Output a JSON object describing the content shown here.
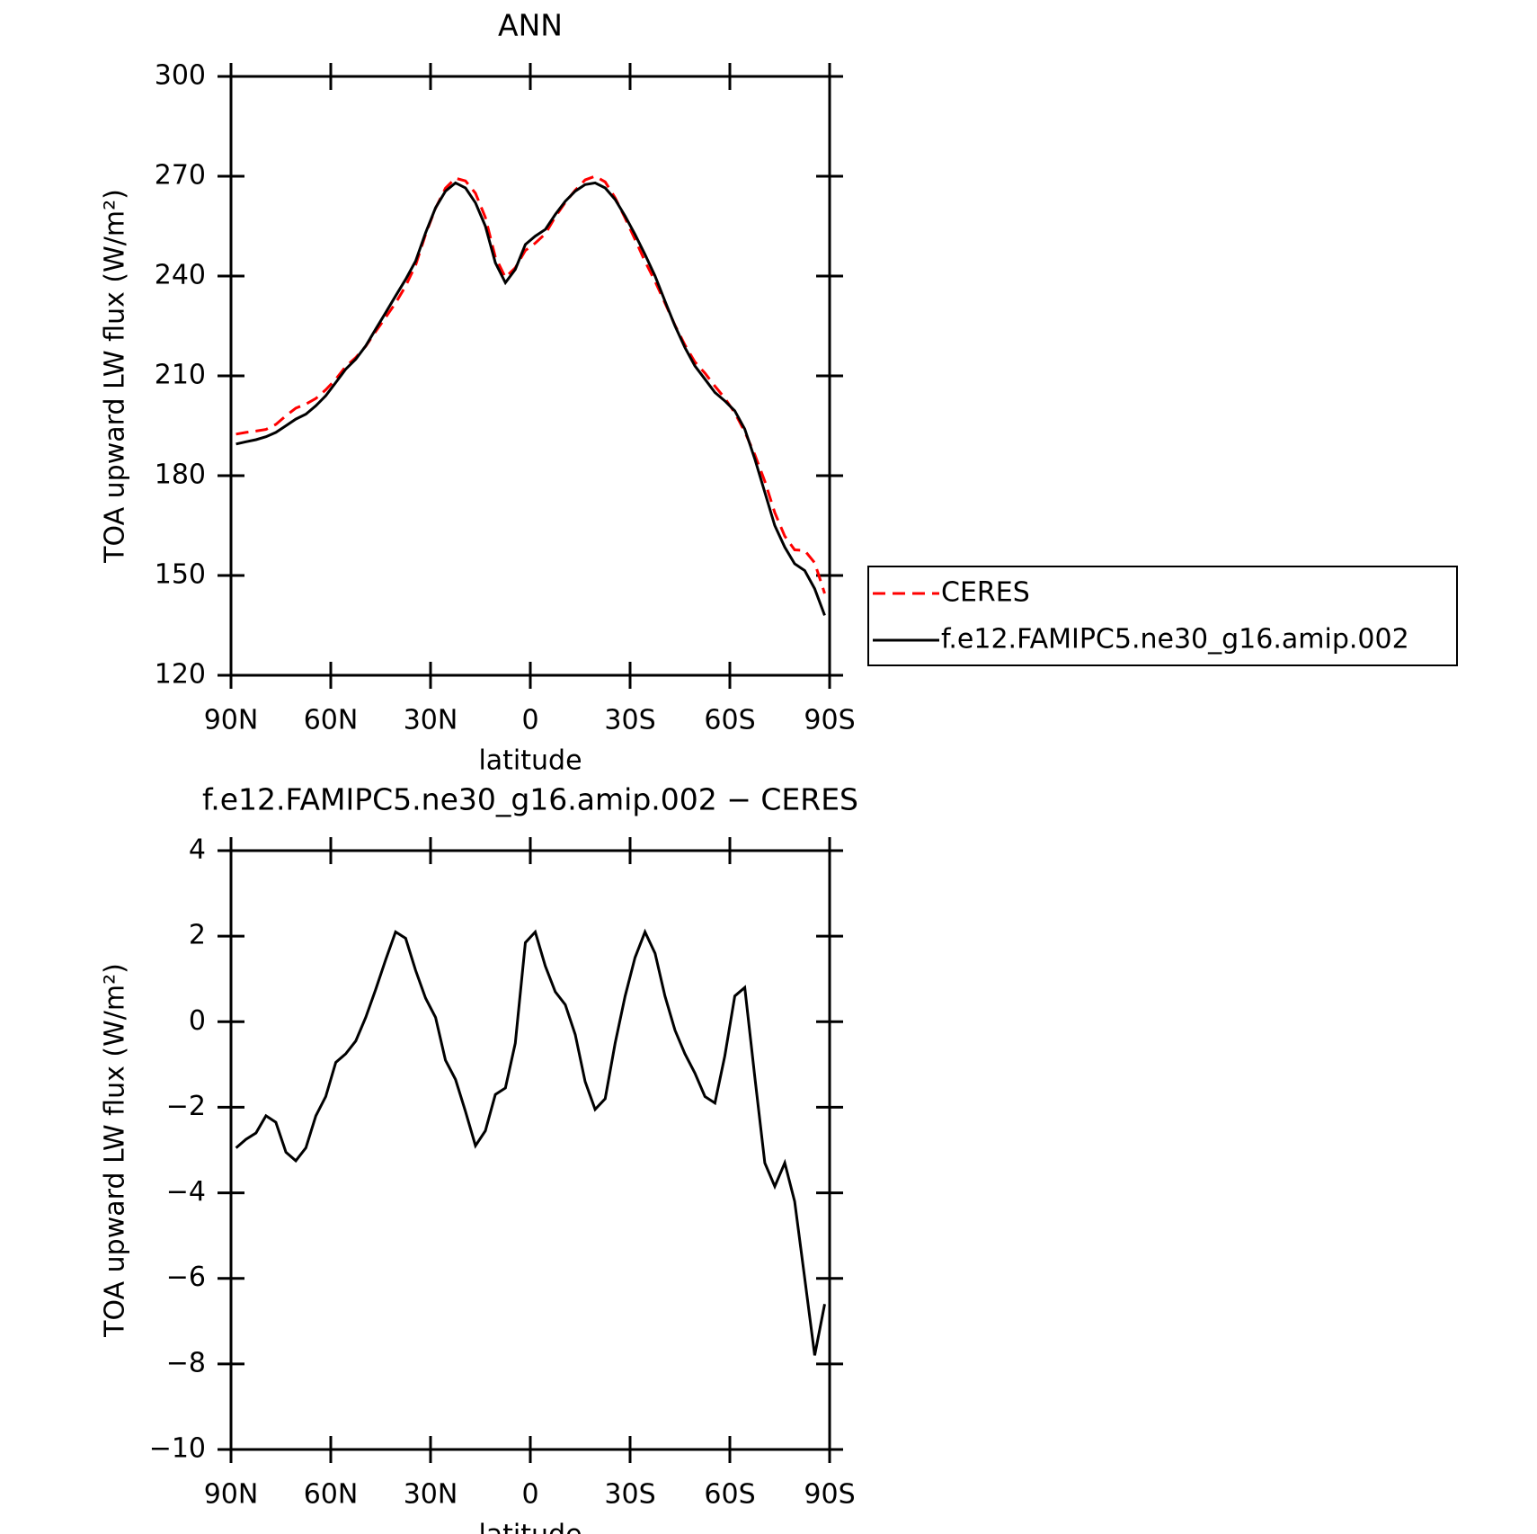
{
  "chart_data": [
    {
      "type": "line",
      "title": "ANN",
      "xlabel": "latitude",
      "ylabel": "TOA upward LW flux (W/m²)",
      "x": [
        88.5,
        85.5,
        82.5,
        79.5,
        76.5,
        73.5,
        70.5,
        67.5,
        64.5,
        61.5,
        58.5,
        55.5,
        52.5,
        49.5,
        46.5,
        43.5,
        40.5,
        37.5,
        34.5,
        31.5,
        28.5,
        25.5,
        22.5,
        19.5,
        16.5,
        13.5,
        10.5,
        7.5,
        4.5,
        1.5,
        -1.5,
        -4.5,
        -7.5,
        -10.5,
        -13.5,
        -16.5,
        -19.5,
        -22.5,
        -25.5,
        -28.5,
        -31.5,
        -34.5,
        -37.5,
        -40.5,
        -43.5,
        -46.5,
        -49.5,
        -52.5,
        -55.5,
        -58.5,
        -61.5,
        -64.5,
        -67.5,
        -70.5,
        -73.5,
        -76.5,
        -79.5,
        -82.5,
        -85.5,
        -88.5
      ],
      "series": [
        {
          "name": "CERES",
          "color": "#ff0000",
          "dash": true,
          "values": [
            192.5,
            193,
            193.4,
            193.9,
            195.4,
            198,
            200.3,
            201.5,
            203.2,
            205.8,
            209,
            212.8,
            215.5,
            218.9,
            223.3,
            227.6,
            231.9,
            237,
            243.3,
            252.5,
            260.4,
            266.4,
            269.4,
            268.6,
            264.9,
            257.6,
            245.7,
            239.6,
            242.5,
            247.7,
            249.9,
            252.7,
            257.8,
            262.1,
            265.8,
            268.9,
            270,
            268.3,
            263.5,
            257.4,
            251,
            244.4,
            238.4,
            231.9,
            225.2,
            219.3,
            214.2,
            210.8,
            206.9,
            203.3,
            198.9,
            193.2,
            186.3,
            178.3,
            168.9,
            161.8,
            157.7,
            157.5,
            153.8,
            144.6
          ]
        },
        {
          "name": "f.e12.FAMIPC5.ne30_g16.amip.002",
          "color": "#000000",
          "dash": false,
          "values": [
            189.5,
            190.2,
            190.8,
            191.7,
            193,
            195,
            197,
            198.5,
            201,
            204,
            208,
            212,
            215,
            219,
            224,
            229,
            234,
            239,
            244.5,
            253,
            260.5,
            265.5,
            268,
            266.5,
            262,
            255,
            244,
            238,
            242,
            249.5,
            252,
            254,
            258.5,
            262.5,
            265.5,
            267.5,
            268,
            266.5,
            263,
            258,
            252.5,
            246.5,
            240,
            232.5,
            225,
            218.5,
            213,
            209,
            205,
            202.5,
            199.5,
            194,
            185,
            175,
            165,
            158.5,
            153.5,
            151.5,
            146,
            138
          ]
        }
      ],
      "xlim": [
        90,
        -90
      ],
      "xticks": [
        {
          "value": 90,
          "label": "90N"
        },
        {
          "value": 60,
          "label": "60N"
        },
        {
          "value": 30,
          "label": "30N"
        },
        0,
        {
          "value": -30,
          "label": "30S"
        },
        {
          "value": -60,
          "label": "60S"
        },
        {
          "value": -90,
          "label": "90S"
        }
      ],
      "ylim": [
        120,
        300
      ],
      "yticks": [
        120,
        150,
        180,
        210,
        240,
        270,
        300
      ],
      "legend": "right"
    },
    {
      "type": "line",
      "title": "f.e12.FAMIPC5.ne30_g16.amip.002 − CERES",
      "xlabel": "latitude",
      "ylabel": "TOA upward LW flux (W/m²)",
      "x": [
        88.5,
        85.5,
        82.5,
        79.5,
        76.5,
        73.5,
        70.5,
        67.5,
        64.5,
        61.5,
        58.5,
        55.5,
        52.5,
        49.5,
        46.5,
        43.5,
        40.5,
        37.5,
        34.5,
        31.5,
        28.5,
        25.5,
        22.5,
        19.5,
        16.5,
        13.5,
        10.5,
        7.5,
        4.5,
        1.5,
        -1.5,
        -4.5,
        -7.5,
        -10.5,
        -13.5,
        -16.5,
        -19.5,
        -22.5,
        -25.5,
        -28.5,
        -31.5,
        -34.5,
        -37.5,
        -40.5,
        -43.5,
        -46.5,
        -49.5,
        -52.5,
        -55.5,
        -58.5,
        -61.5,
        -64.5,
        -67.5,
        -70.5,
        -73.5,
        -76.5,
        -79.5,
        -82.5,
        -85.5,
        -88.5
      ],
      "series": [
        {
          "color": "#000000",
          "dash": false,
          "values": [
            -2.95,
            -2.75,
            -2.6,
            -2.2,
            -2.35,
            -3.05,
            -3.25,
            -2.95,
            -2.2,
            -1.75,
            -0.95,
            -0.75,
            -0.45,
            0.1,
            0.75,
            1.45,
            2.1,
            1.95,
            1.2,
            0.55,
            0.1,
            -0.9,
            -1.35,
            -2.1,
            -2.9,
            -2.55,
            -1.7,
            -1.55,
            -0.5,
            1.85,
            2.1,
            1.3,
            0.7,
            0.4,
            -0.3,
            -1.4,
            -2.05,
            -1.8,
            -0.5,
            0.6,
            1.5,
            2.1,
            1.6,
            0.6,
            -0.2,
            -0.75,
            -1.2,
            -1.75,
            -1.9,
            -0.8,
            0.6,
            0.8,
            -1.3,
            -3.3,
            -3.85,
            -3.3,
            -4.2,
            -6,
            -7.8,
            -6.6
          ]
        }
      ],
      "xlim": [
        90,
        -90
      ],
      "xticks": [
        {
          "value": 90,
          "label": "90N"
        },
        {
          "value": 60,
          "label": "60N"
        },
        {
          "value": 30,
          "label": "30N"
        },
        0,
        {
          "value": -30,
          "label": "30S"
        },
        {
          "value": -60,
          "label": "60S"
        },
        {
          "value": -90,
          "label": "90S"
        }
      ],
      "ylim": [
        -10,
        4
      ],
      "yticks": [
        {
          "value": -10,
          "label": "−10"
        },
        {
          "value": -8,
          "label": "−8"
        },
        {
          "value": -6,
          "label": "−6"
        },
        {
          "value": -4,
          "label": "−4"
        },
        {
          "value": -2,
          "label": "−2"
        },
        0,
        2,
        4
      ]
    }
  ]
}
